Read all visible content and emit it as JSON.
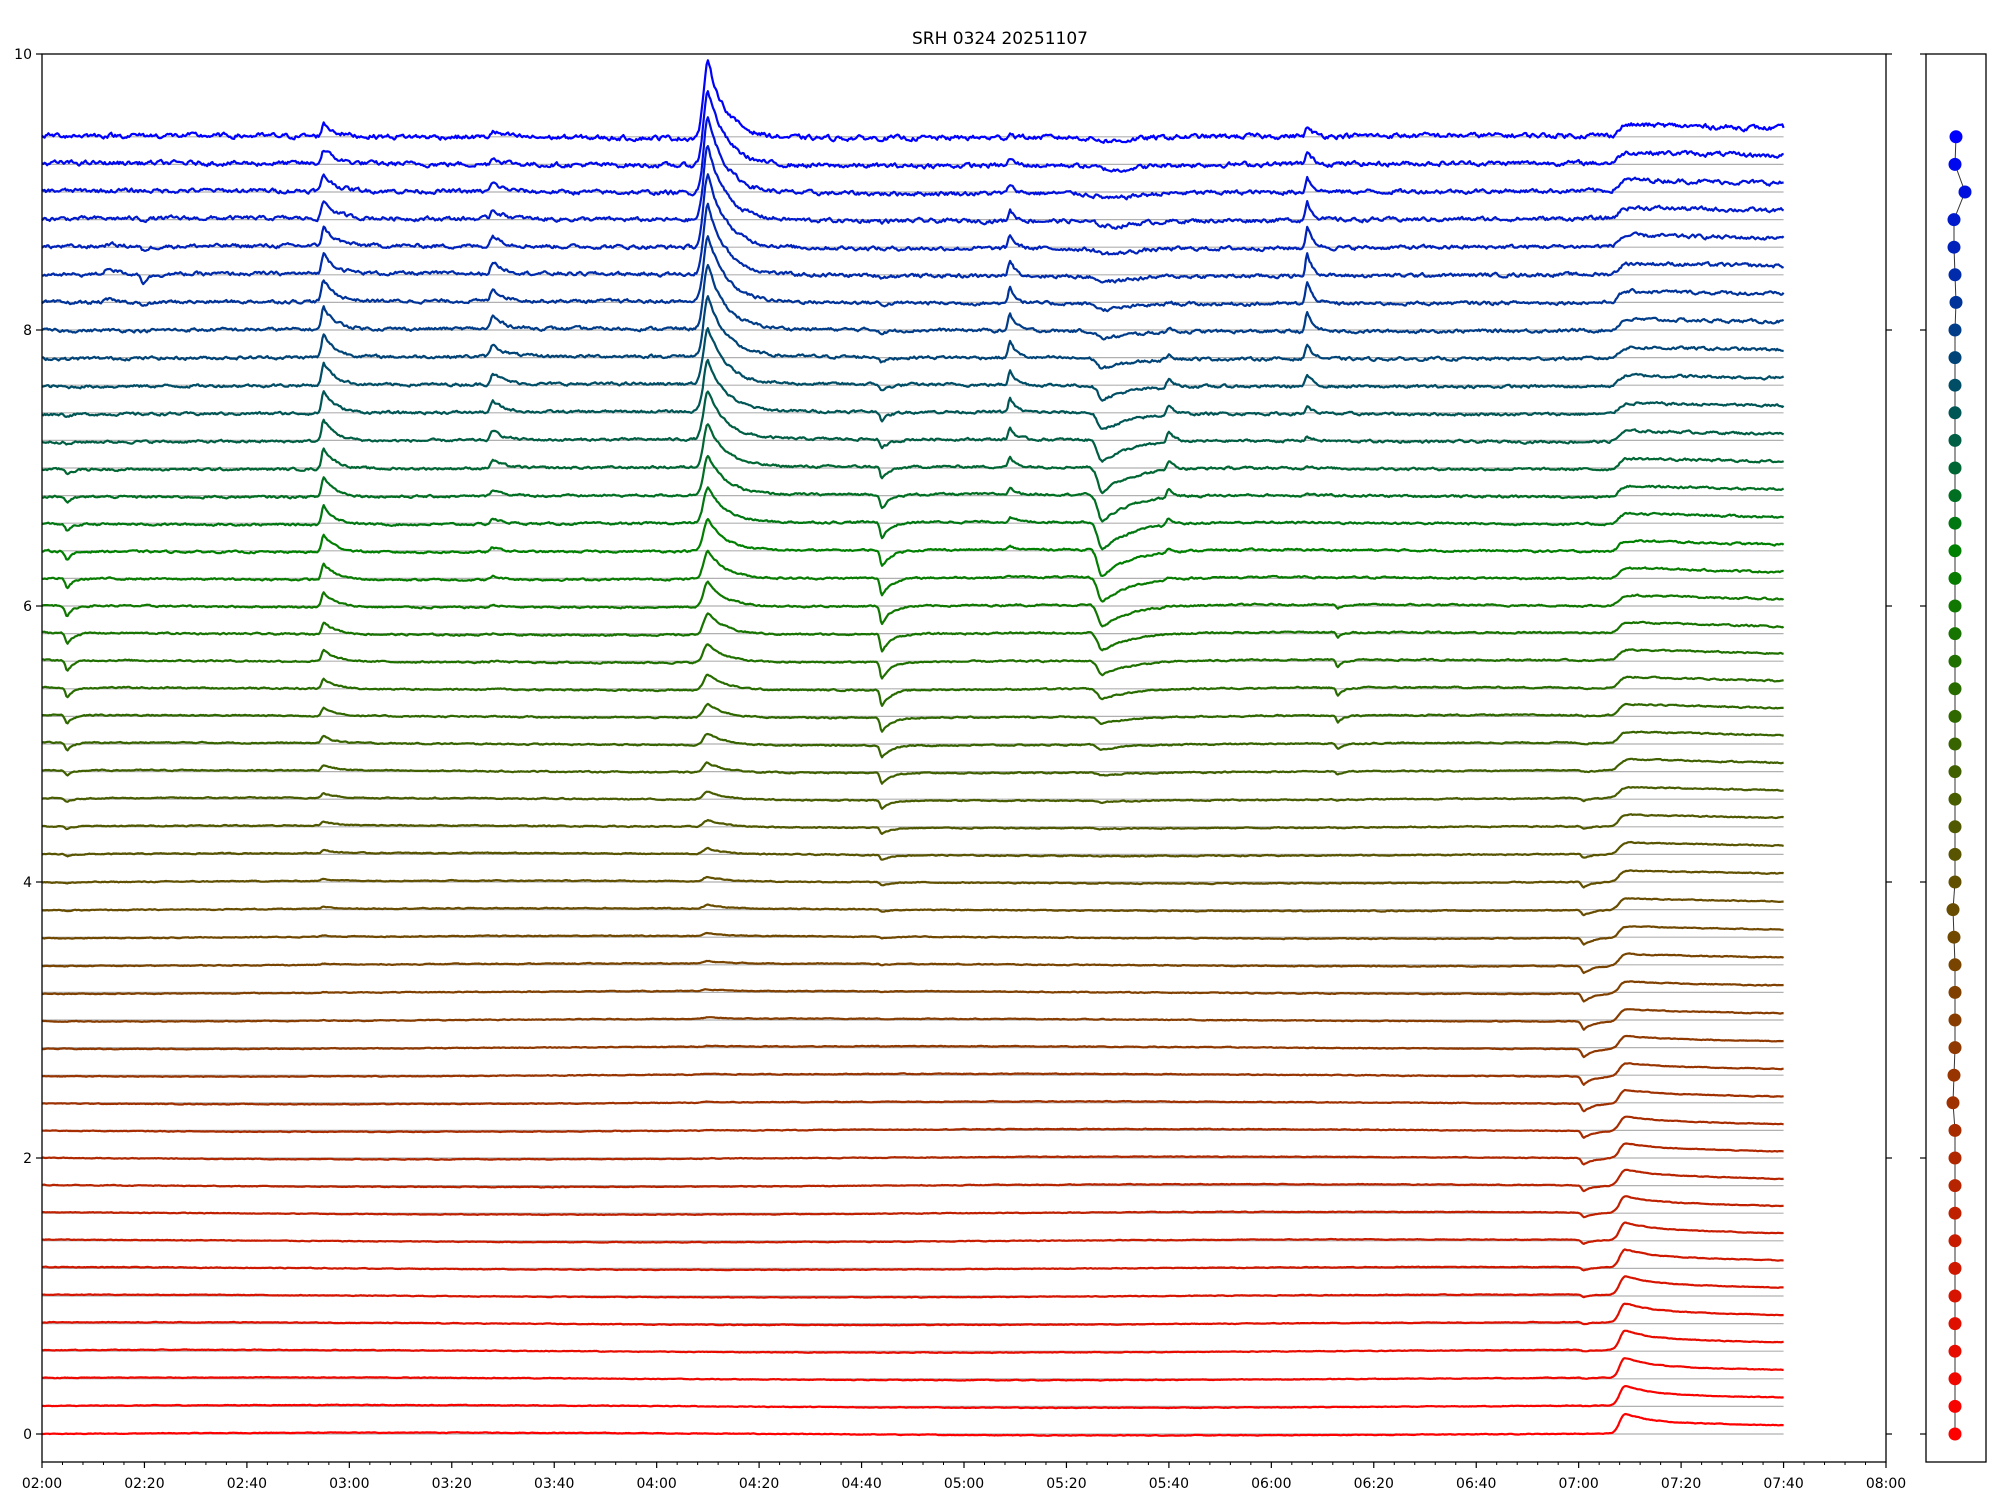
{
  "chart_data": {
    "type": "line",
    "title": "SRH 0324 20251107",
    "xlabel": "",
    "ylabel": "",
    "x_unit": "hours (UTC time of day)",
    "xlim": [
      2.0,
      8.0
    ],
    "ylim": [
      0,
      10
    ],
    "xticks": [
      {
        "v": 2.0,
        "label": "02:00"
      },
      {
        "v": 2.3333,
        "label": "02:20"
      },
      {
        "v": 2.6667,
        "label": "02:40"
      },
      {
        "v": 3.0,
        "label": "03:00"
      },
      {
        "v": 3.3333,
        "label": "03:20"
      },
      {
        "v": 3.6667,
        "label": "03:40"
      },
      {
        "v": 4.0,
        "label": "04:00"
      },
      {
        "v": 4.3333,
        "label": "04:20"
      },
      {
        "v": 4.6667,
        "label": "04:40"
      },
      {
        "v": 5.0,
        "label": "05:00"
      },
      {
        "v": 5.3333,
        "label": "05:20"
      },
      {
        "v": 5.6667,
        "label": "05:40"
      },
      {
        "v": 6.0,
        "label": "06:00"
      },
      {
        "v": 6.3333,
        "label": "06:20"
      },
      {
        "v": 6.6667,
        "label": "06:40"
      },
      {
        "v": 7.0,
        "label": "07:00"
      },
      {
        "v": 7.3333,
        "label": "07:20"
      },
      {
        "v": 7.6667,
        "label": "07:40"
      },
      {
        "v": 8.0,
        "label": "08:00"
      }
    ],
    "yticks": [
      {
        "v": 0,
        "label": "0"
      },
      {
        "v": 2,
        "label": "2"
      },
      {
        "v": 4,
        "label": "4"
      },
      {
        "v": 6,
        "label": "6"
      },
      {
        "v": 8,
        "label": "8"
      },
      {
        "v": 10,
        "label": "10"
      }
    ],
    "trace_count": 48,
    "trace_spacing": 0.2,
    "trace_time_range": [
      2.0,
      7.6667
    ],
    "grid": "horizontal baseline per trace",
    "color_bottom": "#ff0000",
    "color_middle": "#008000",
    "color_top": "#0000ff",
    "baseline_color": "#b0b0b0",
    "events": [
      {
        "time": 2.083,
        "amp": -0.08,
        "center_trace": 29,
        "spread": 6,
        "rise": 0.01,
        "decay": 0.02
      },
      {
        "time": 2.22,
        "amp": 0.05,
        "center_trace": 42,
        "spread": 1,
        "rise": 0.02,
        "decay": 0.03
      },
      {
        "time": 2.33,
        "amp": -0.06,
        "center_trace": 42,
        "spread": 1.5,
        "rise": 0.01,
        "decay": 0.02
      },
      {
        "time": 2.917,
        "amp": 0.16,
        "center_trace": 38,
        "spread": 12,
        "rise": 0.01,
        "decay": 0.04
      },
      {
        "time": 3.467,
        "amp": 0.09,
        "center_trace": 40,
        "spread": 8,
        "rise": 0.01,
        "decay": 0.04
      },
      {
        "time": 4.167,
        "amp": 0.55,
        "center_trace": 47,
        "spread": 16,
        "rise": 0.02,
        "decay": 0.06
      },
      {
        "time": 4.733,
        "amp": -0.13,
        "center_trace": 30,
        "spread": 8,
        "rise": 0.008,
        "decay": 0.03
      },
      {
        "time": 5.15,
        "amp": 0.13,
        "center_trace": 40,
        "spread": 6,
        "rise": 0.008,
        "decay": 0.02
      },
      {
        "time": 5.45,
        "amp": -0.2,
        "center_trace": 33,
        "spread": 6,
        "rise": 0.02,
        "decay": 0.1
      },
      {
        "time": 5.5,
        "amp": -0.04,
        "center_trace": 45,
        "spread": 4,
        "rise": 0.08,
        "decay": 0.08
      },
      {
        "time": 5.667,
        "amp": 0.08,
        "center_trace": 36,
        "spread": 4,
        "rise": 0.01,
        "decay": 0.02
      },
      {
        "time": 6.117,
        "amp": 0.16,
        "center_trace": 42,
        "spread": 5,
        "rise": 0.008,
        "decay": 0.02
      },
      {
        "time": 6.217,
        "amp": -0.06,
        "center_trace": 27,
        "spread": 3,
        "rise": 0.008,
        "decay": 0.02
      },
      {
        "time": 7.017,
        "amp": -0.06,
        "center_trace": 14,
        "spread": 8,
        "rise": 0.01,
        "decay": 0.03
      },
      {
        "time": 7.15,
        "amp": 0.07,
        "center_trace": 0,
        "spread": 12,
        "rise": 0.02,
        "decay": 0.08
      }
    ],
    "step_event": {
      "time": 7.13,
      "amp": 0.08
    },
    "side_panel": {
      "type": "scatter",
      "ylim": [
        0,
        10
      ],
      "x_offsets": [
        0,
        0,
        0,
        0,
        0,
        0,
        0,
        0,
        0,
        0,
        0,
        0,
        -0.2,
        -0.1,
        0,
        0,
        0,
        0,
        -0.1,
        -0.2,
        0,
        0,
        0,
        0,
        0,
        0,
        0,
        0,
        0,
        0,
        0,
        0,
        0,
        0,
        0,
        0,
        0,
        0,
        0,
        0,
        0,
        0.1,
        0,
        -0.1,
        -0.1,
        1.0,
        0,
        0.1
      ]
    }
  }
}
